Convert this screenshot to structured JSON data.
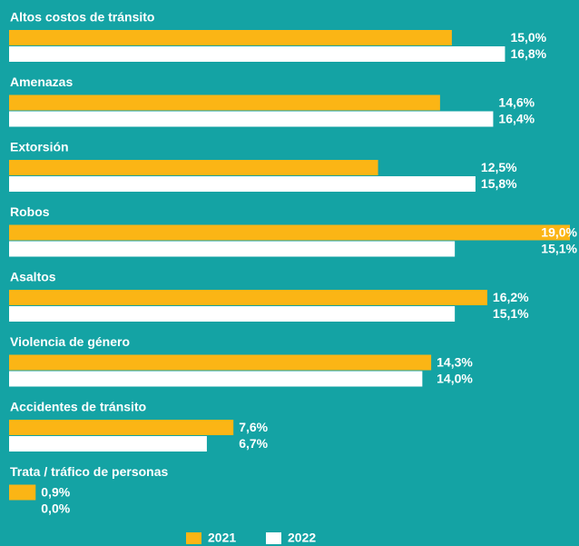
{
  "chart_data": {
    "type": "bar",
    "orientation": "horizontal",
    "categories": [
      "Altos costos de tránsito",
      "Amenazas",
      "Extorsión",
      "Robos",
      "Asaltos",
      "Violencia de género",
      "Accidentes de tránsito",
      "Trata / tráfico de personas"
    ],
    "series": [
      {
        "name": "2021",
        "color": "#fbb515",
        "values": [
          15.0,
          14.6,
          12.5,
          19.0,
          16.2,
          14.3,
          7.6,
          0.9
        ],
        "value_labels": [
          "15,0%",
          "14,6%",
          "12,5%",
          "19,0%",
          "16,2%",
          "14,3%",
          "7,6%",
          "0,9%"
        ]
      },
      {
        "name": "2022",
        "color": "#ffffff",
        "values": [
          16.8,
          16.4,
          15.8,
          15.1,
          15.1,
          14.0,
          6.7,
          0.0
        ],
        "value_labels": [
          "16,8%",
          "16,4%",
          "15,8%",
          "15,1%",
          "15,1%",
          "14,0%",
          "6,7%",
          "0,0%"
        ]
      }
    ],
    "legend": "bottom"
  }
}
